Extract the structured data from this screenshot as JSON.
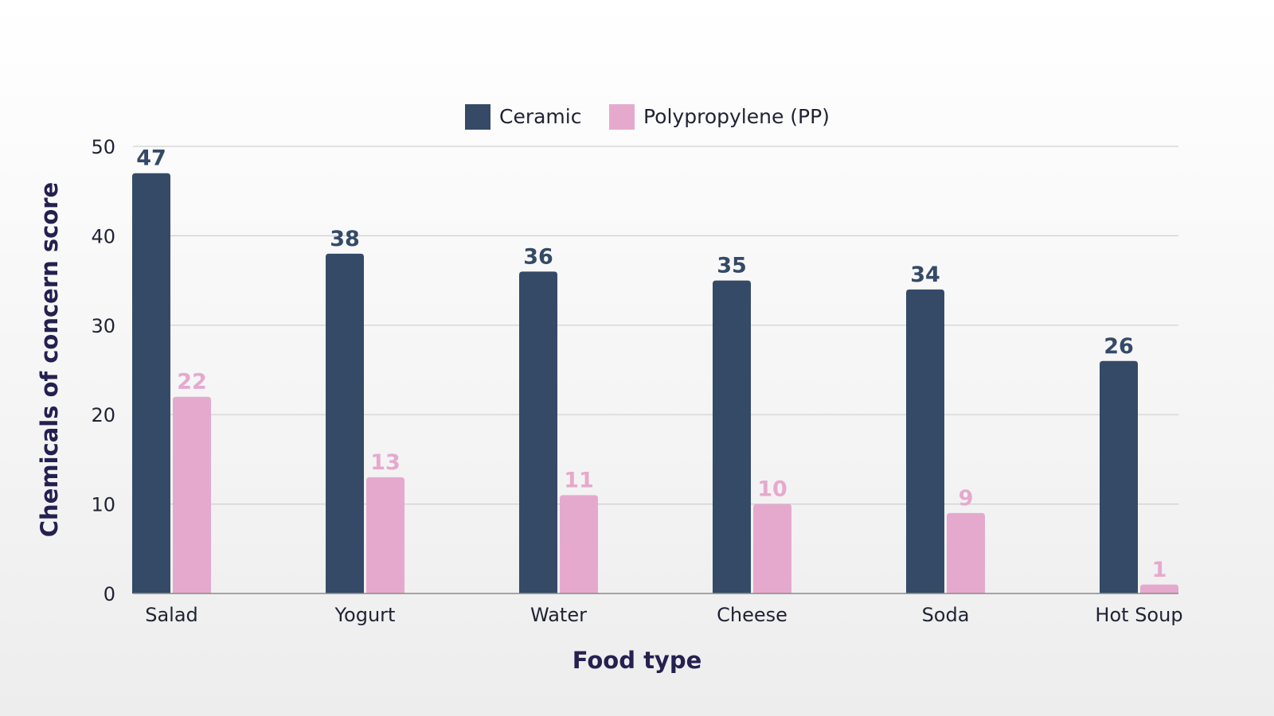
{
  "chart_data": {
    "type": "bar",
    "categories": [
      "Salad",
      "Yogurt",
      "Water",
      "Cheese",
      "Soda",
      "Hot Soup"
    ],
    "series": [
      {
        "name": "Ceramic",
        "values": [
          47,
          38,
          36,
          35,
          34,
          26
        ],
        "color": "#344a67"
      },
      {
        "name": "Polypropylene (PP)",
        "values": [
          22,
          13,
          11,
          10,
          9,
          1
        ],
        "color": "#e6a9ce"
      }
    ],
    "xlabel": "Food type",
    "ylabel": "Chemicals of concern score",
    "ylim": [
      0,
      50
    ],
    "yticks": [
      0,
      10,
      20,
      30,
      40,
      50
    ],
    "grid": true,
    "legend_position": "top-center",
    "data_labels": true
  }
}
